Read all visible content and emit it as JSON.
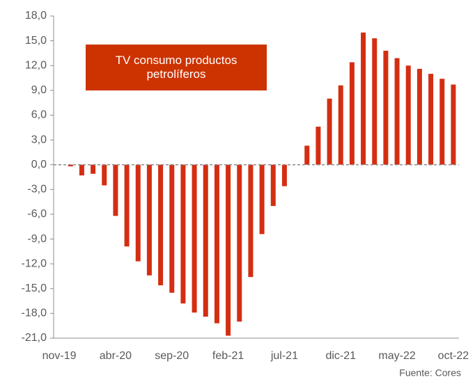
{
  "chart_data": {
    "type": "bar",
    "annotation": "TV consumo productos petrolíferos",
    "source": "Fuente: Cores",
    "color": "#d42e12",
    "categories": [
      "nov-19",
      null,
      null,
      null,
      null,
      "abr-20",
      null,
      null,
      null,
      null,
      "sep-20",
      null,
      null,
      null,
      null,
      "feb-21",
      null,
      null,
      null,
      null,
      "jul-21",
      null,
      null,
      null,
      null,
      "dic-21",
      null,
      null,
      null,
      null,
      "may-22",
      null,
      null,
      null,
      null,
      "oct-22"
    ],
    "values": [
      0,
      -0.2,
      -1.3,
      -1.1,
      -2.5,
      -6.2,
      -9.9,
      -11.7,
      -13.4,
      -14.6,
      -15.5,
      -16.8,
      -17.9,
      -18.4,
      -19.2,
      -20.7,
      -19.0,
      -13.6,
      -8.4,
      -5.0,
      -2.6,
      0,
      2.3,
      4.6,
      8.0,
      9.6,
      12.4,
      16.0,
      15.3,
      13.8,
      12.9,
      12.0,
      11.6,
      11.0,
      10.4,
      9.7
    ],
    "ylim": [
      -21,
      18
    ],
    "yticks": [
      {
        "value": -21,
        "label": "-21,0"
      },
      {
        "value": -18,
        "label": "-18,0"
      },
      {
        "value": -15,
        "label": "-15,0"
      },
      {
        "value": -12,
        "label": "-12,0"
      },
      {
        "value": -9,
        "label": "-9,0"
      },
      {
        "value": -6,
        "label": "-6,0"
      },
      {
        "value": -3,
        "label": "-3,0"
      },
      {
        "value": 0,
        "label": "0,0"
      },
      {
        "value": 3,
        "label": "3,0"
      },
      {
        "value": 6,
        "label": "6,0"
      },
      {
        "value": 9,
        "label": "9,0"
      },
      {
        "value": 12,
        "label": "12,0"
      },
      {
        "value": 15,
        "label": "15,0"
      },
      {
        "value": 18,
        "label": "18,0"
      }
    ],
    "grid": false
  }
}
